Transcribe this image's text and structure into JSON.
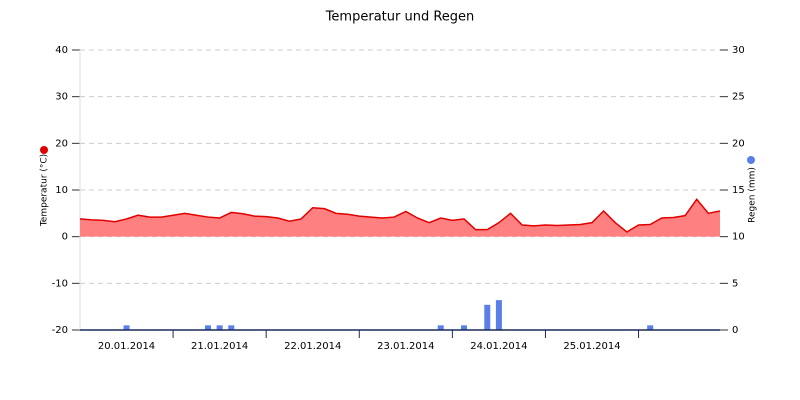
{
  "chart_data": {
    "type": "area",
    "title": "Temperatur und Regen",
    "categories": [
      null,
      null,
      null,
      null,
      "20.01.2014",
      null,
      null,
      null,
      null,
      null,
      null,
      null,
      "21.01.2014",
      null,
      null,
      null,
      null,
      null,
      null,
      null,
      "22.01.2014",
      null,
      null,
      null,
      null,
      null,
      null,
      null,
      "23.01.2014",
      null,
      null,
      null,
      null,
      null,
      null,
      null,
      "24.01.2014",
      null,
      null,
      null,
      null,
      null,
      null,
      null,
      "25.01.2014",
      null,
      null,
      null,
      null,
      null,
      null,
      null,
      null,
      null,
      null,
      null
    ],
    "series": [
      {
        "name": "Temperatur (°C)",
        "type": "area",
        "color": "#e00000",
        "fill": "#ff8080",
        "values": [
          3.8,
          3.6,
          3.5,
          3.2,
          3.8,
          4.6,
          4.2,
          4.2,
          4.6,
          5.0,
          4.6,
          4.2,
          4.0,
          5.2,
          4.9,
          4.4,
          4.3,
          4.0,
          3.3,
          3.8,
          6.2,
          6.0,
          5.0,
          4.8,
          4.4,
          4.2,
          4.0,
          4.2,
          5.4,
          4.0,
          3.0,
          4.0,
          3.5,
          3.8,
          1.5,
          1.5,
          3.0,
          5.0,
          2.5,
          2.3,
          2.5,
          2.4,
          2.5,
          2.6,
          3.0,
          5.5,
          3.0,
          1.0,
          2.5,
          2.6,
          4.0,
          4.1,
          4.5,
          8.0,
          5.0,
          5.5
        ]
      },
      {
        "name": "Regen (mm)",
        "type": "bar",
        "axis": "y2",
        "color": "#5b7fe8",
        "values": [
          0,
          0,
          0,
          0,
          0.5,
          0,
          0,
          0,
          0,
          0,
          0,
          0.5,
          0.5,
          0.5,
          0,
          0,
          0,
          0,
          0,
          0,
          0,
          0,
          0,
          0,
          0,
          0,
          0,
          0,
          0,
          0,
          0,
          0.5,
          0,
          0.5,
          0,
          2.7,
          3.2,
          0,
          0,
          0,
          0,
          0,
          0,
          0,
          0,
          0,
          0,
          0,
          0,
          0.5,
          0,
          0,
          0,
          0,
          0,
          0
        ]
      }
    ],
    "ylim": [
      -20,
      40
    ],
    "yticks": [
      -20,
      -10,
      0,
      10,
      20,
      30,
      40
    ],
    "y2lim": [
      0,
      30
    ],
    "y2ticks": [
      0,
      5,
      10,
      15,
      20,
      25,
      30
    ],
    "grid": true
  }
}
